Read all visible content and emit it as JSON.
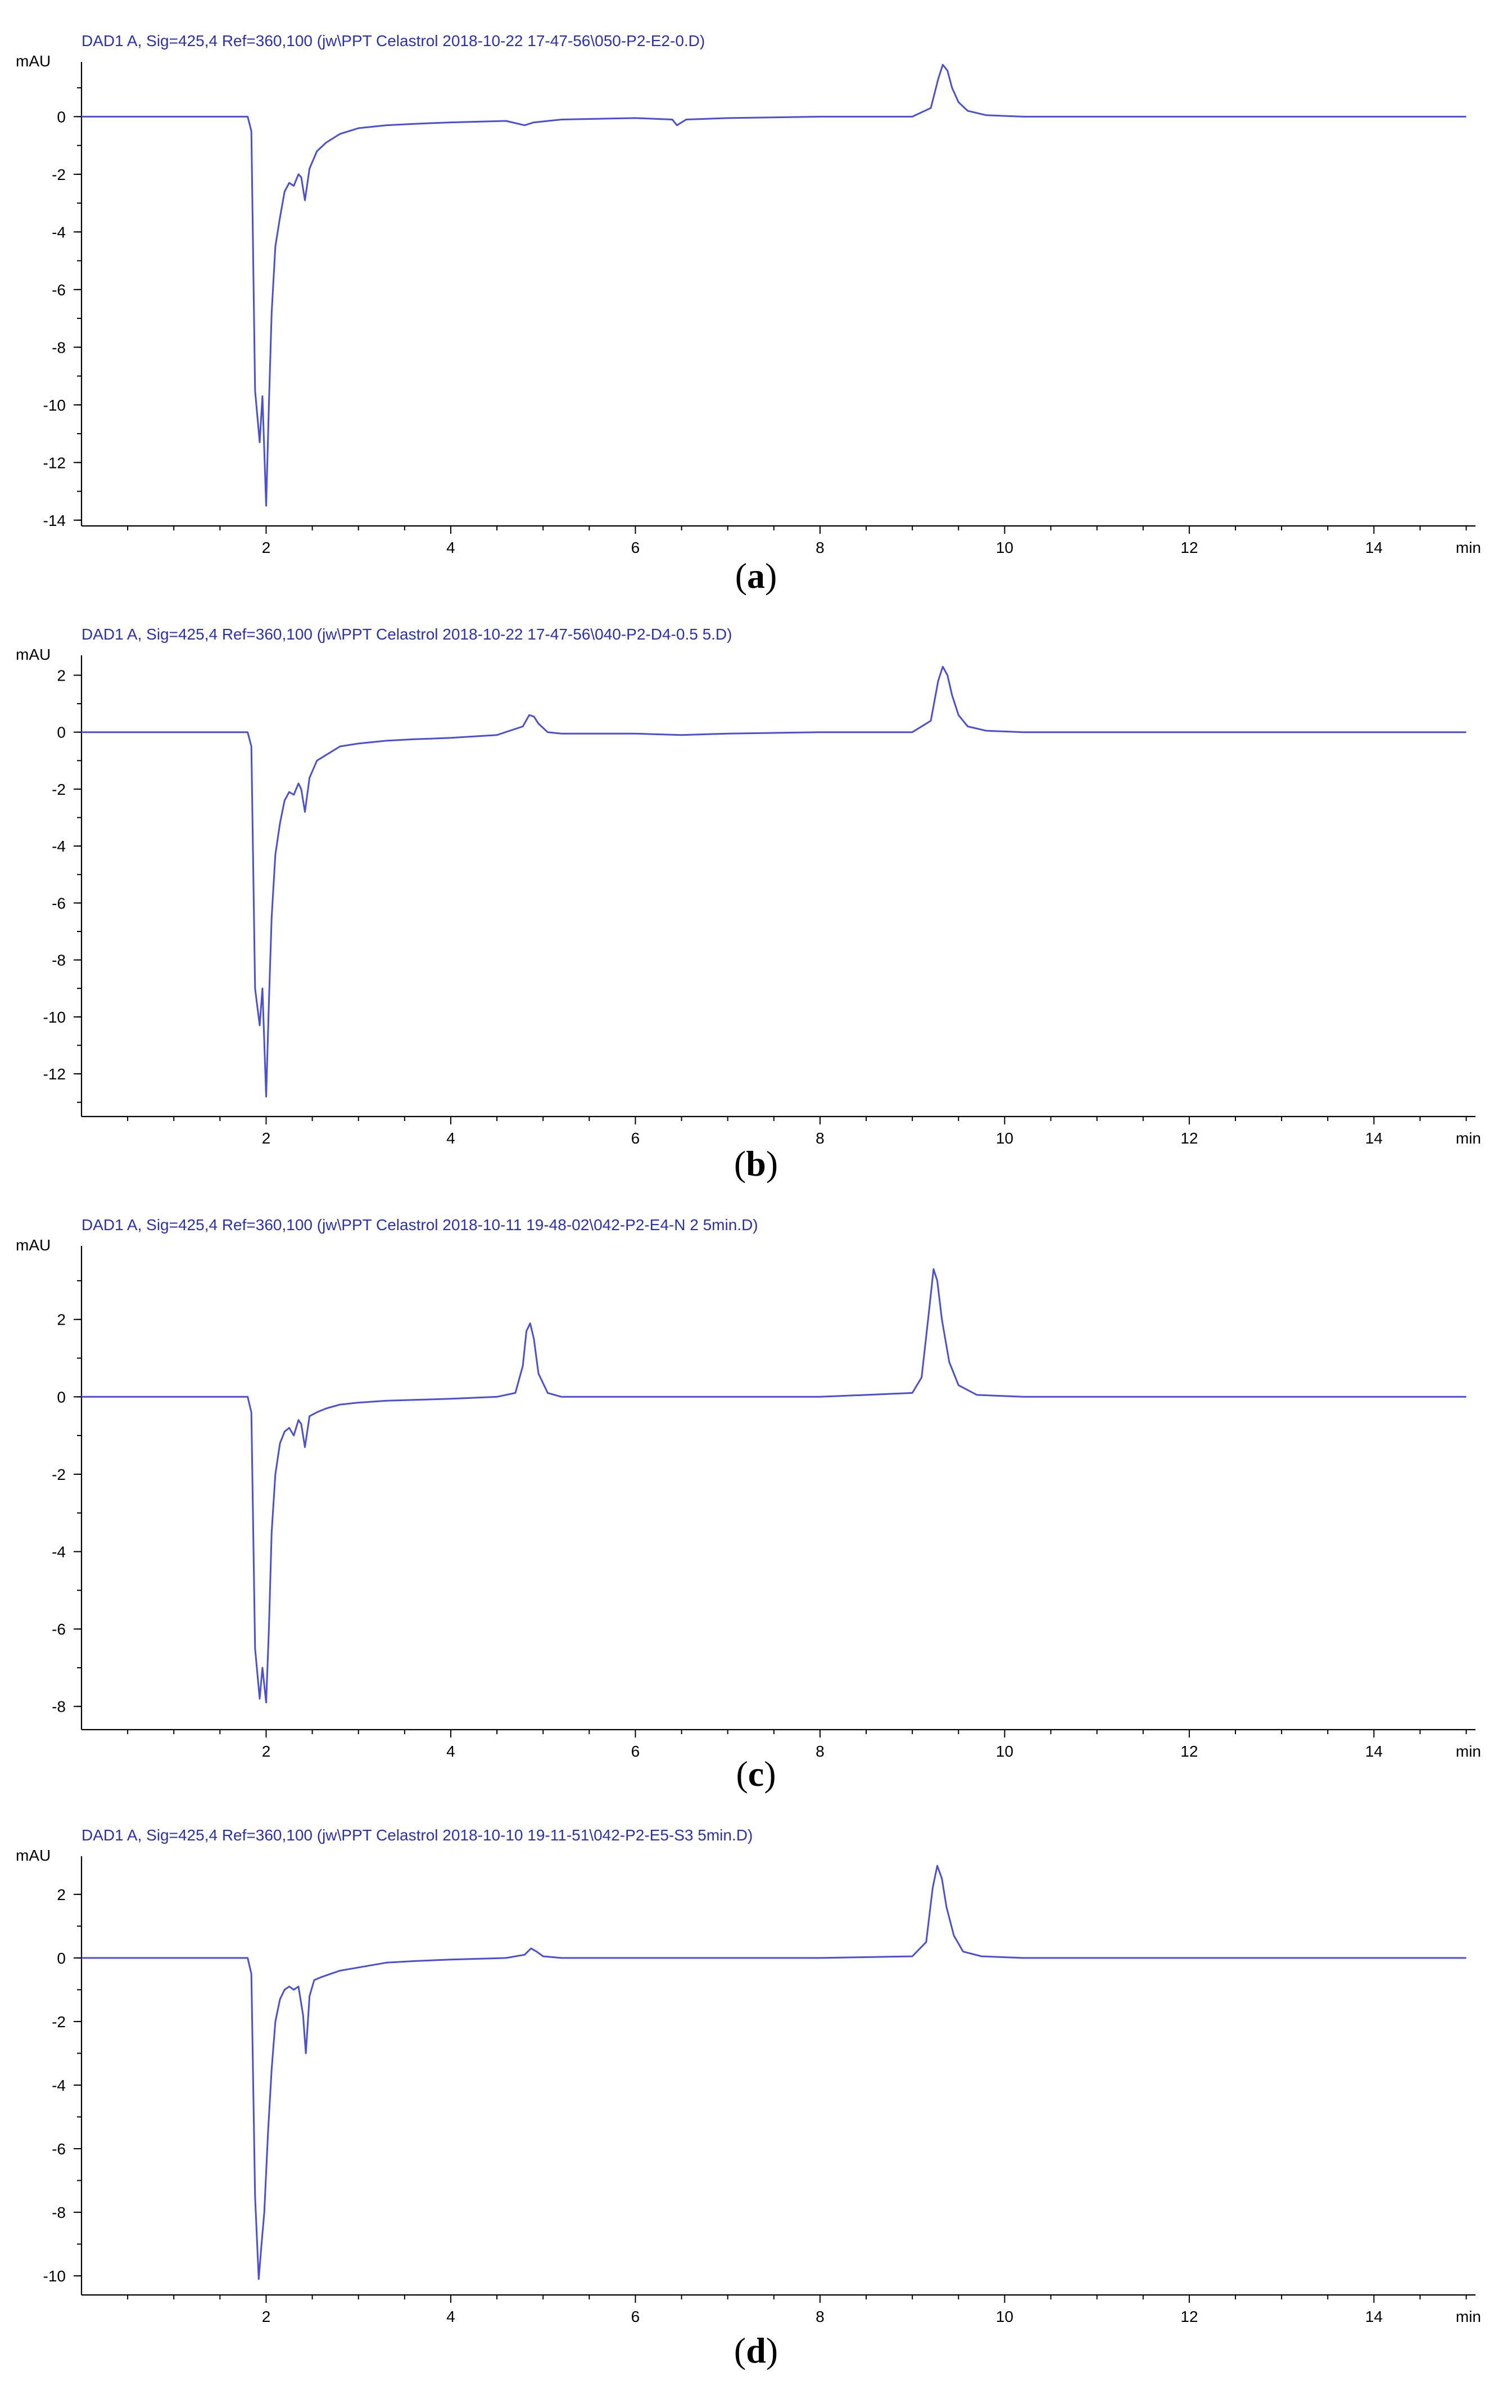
{
  "chart_data": [
    {
      "type": "line",
      "panel": "a",
      "title": "DAD1 A, Sig=425,4 Ref=360,100 (jw\\PPT Celastrol  2018-10-22 17-47-56\\050-P2-E2-0.D)",
      "ylabel": "mAU",
      "xlabel": "min",
      "xlim": [
        0,
        15.1
      ],
      "ylim": [
        -14.2,
        1.9
      ],
      "xticks": [
        2,
        4,
        6,
        8,
        10,
        12,
        14
      ],
      "yticks": [
        -14,
        -12,
        -10,
        -8,
        -6,
        -4,
        -2,
        0
      ],
      "series": [
        {
          "color": "#4a4fd8",
          "x": [
            0,
            1.8,
            1.84,
            1.88,
            1.93,
            1.96,
            2.0,
            2.03,
            2.06,
            2.1,
            2.15,
            2.2,
            2.25,
            2.3,
            2.35,
            2.38,
            2.42,
            2.47,
            2.55,
            2.65,
            2.8,
            3.0,
            3.3,
            3.6,
            4.0,
            4.6,
            4.8,
            4.9,
            5.2,
            6.0,
            6.4,
            6.45,
            6.55,
            7.0,
            8.0,
            9.0,
            9.2,
            9.28,
            9.33,
            9.38,
            9.43,
            9.5,
            9.6,
            9.8,
            10.2,
            12.0,
            15.0
          ],
          "y": [
            0,
            0,
            -0.5,
            -9.5,
            -11.3,
            -9.7,
            -13.5,
            -10.0,
            -6.8,
            -4.5,
            -3.5,
            -2.6,
            -2.3,
            -2.4,
            -2.0,
            -2.1,
            -2.9,
            -1.8,
            -1.2,
            -0.9,
            -0.6,
            -0.4,
            -0.3,
            -0.25,
            -0.2,
            -0.15,
            -0.3,
            -0.2,
            -0.1,
            -0.05,
            -0.1,
            -0.3,
            -0.1,
            -0.05,
            0,
            0,
            0.3,
            1.3,
            1.8,
            1.6,
            1.0,
            0.5,
            0.2,
            0.05,
            0,
            0,
            0
          ]
        }
      ]
    },
    {
      "type": "line",
      "panel": "b",
      "title": "DAD1 A, Sig=425,4 Ref=360,100 (jw\\PPT Celastrol  2018-10-22 17-47-56\\040-P2-D4-0.5 5.D)",
      "ylabel": "mAU",
      "xlabel": "min",
      "xlim": [
        0,
        15.1
      ],
      "ylim": [
        -13.5,
        2.7
      ],
      "xticks": [
        2,
        4,
        6,
        8,
        10,
        12,
        14
      ],
      "yticks": [
        -12,
        -10,
        -8,
        -6,
        -4,
        -2,
        0,
        2
      ],
      "series": [
        {
          "color": "#4a4fd8",
          "x": [
            0,
            1.8,
            1.84,
            1.88,
            1.93,
            1.96,
            2.0,
            2.03,
            2.06,
            2.1,
            2.15,
            2.2,
            2.25,
            2.3,
            2.35,
            2.38,
            2.42,
            2.47,
            2.55,
            2.65,
            2.8,
            3.0,
            3.3,
            3.6,
            4.0,
            4.5,
            4.78,
            4.85,
            4.9,
            4.95,
            5.05,
            5.2,
            6.0,
            6.5,
            7.0,
            8.0,
            9.0,
            9.2,
            9.28,
            9.33,
            9.38,
            9.43,
            9.5,
            9.6,
            9.8,
            10.2,
            12.0,
            15.0
          ],
          "y": [
            0,
            0,
            -0.5,
            -9.0,
            -10.3,
            -9.0,
            -12.8,
            -9.5,
            -6.5,
            -4.3,
            -3.2,
            -2.4,
            -2.1,
            -2.2,
            -1.8,
            -2.0,
            -2.8,
            -1.6,
            -1.0,
            -0.8,
            -0.5,
            -0.4,
            -0.3,
            -0.25,
            -0.2,
            -0.1,
            0.2,
            0.6,
            0.55,
            0.3,
            0.0,
            -0.05,
            -0.05,
            -0.1,
            -0.05,
            0,
            0,
            0.4,
            1.8,
            2.3,
            2.0,
            1.3,
            0.6,
            0.2,
            0.05,
            0,
            0,
            0
          ]
        }
      ]
    },
    {
      "type": "line",
      "panel": "c",
      "title": "DAD1 A, Sig=425,4 Ref=360,100 (jw\\PPT Celastrol  2018-10-11 19-48-02\\042-P2-E4-N 2 5min.D)",
      "ylabel": "mAU",
      "xlabel": "min",
      "xlim": [
        0,
        15.1
      ],
      "ylim": [
        -8.6,
        3.9
      ],
      "xticks": [
        2,
        4,
        6,
        8,
        10,
        12,
        14
      ],
      "yticks": [
        -8,
        -6,
        -4,
        -2,
        0,
        2
      ],
      "series": [
        {
          "color": "#4a4fd8",
          "x": [
            0,
            1.8,
            1.84,
            1.88,
            1.93,
            1.96,
            2.0,
            2.03,
            2.06,
            2.1,
            2.15,
            2.2,
            2.25,
            2.3,
            2.35,
            2.38,
            2.42,
            2.47,
            2.55,
            2.65,
            2.8,
            3.0,
            3.3,
            3.6,
            4.0,
            4.5,
            4.7,
            4.78,
            4.82,
            4.86,
            4.9,
            4.95,
            5.05,
            5.2,
            6.0,
            8.0,
            9.0,
            9.1,
            9.18,
            9.23,
            9.27,
            9.32,
            9.4,
            9.5,
            9.7,
            10.2,
            12.0,
            15.0
          ],
          "y": [
            0,
            0,
            -0.4,
            -6.5,
            -7.8,
            -7.0,
            -7.9,
            -6.0,
            -3.5,
            -2.0,
            -1.2,
            -0.9,
            -0.8,
            -1.0,
            -0.6,
            -0.7,
            -1.3,
            -0.5,
            -0.4,
            -0.3,
            -0.2,
            -0.15,
            -0.1,
            -0.08,
            -0.05,
            0,
            0.1,
            0.8,
            1.7,
            1.9,
            1.5,
            0.6,
            0.1,
            0,
            0,
            0,
            0.1,
            0.5,
            2.2,
            3.3,
            3.0,
            2.0,
            0.9,
            0.3,
            0.05,
            0,
            0,
            0
          ]
        }
      ]
    },
    {
      "type": "line",
      "panel": "d",
      "title": "DAD1 A, Sig=425,4 Ref=360,100 (jw\\PPT Celastrol  2018-10-10 19-11-51\\042-P2-E5-S3 5min.D)",
      "ylabel": "mAU",
      "xlabel": "min",
      "xlim": [
        0,
        15.1
      ],
      "ylim": [
        -10.6,
        3.2
      ],
      "xticks": [
        2,
        4,
        6,
        8,
        10,
        12,
        14
      ],
      "yticks": [
        -10,
        -8,
        -6,
        -4,
        -2,
        0,
        2
      ],
      "series": [
        {
          "color": "#4a4fd8",
          "x": [
            0,
            1.8,
            1.84,
            1.88,
            1.92,
            1.95,
            1.98,
            2.02,
            2.06,
            2.1,
            2.15,
            2.2,
            2.25,
            2.3,
            2.35,
            2.4,
            2.43,
            2.47,
            2.52,
            2.6,
            2.7,
            2.8,
            2.9,
            3.0,
            3.3,
            3.6,
            4.0,
            4.6,
            4.8,
            4.87,
            4.93,
            5.0,
            5.2,
            6.0,
            8.0,
            9.0,
            9.15,
            9.22,
            9.27,
            9.32,
            9.37,
            9.45,
            9.55,
            9.75,
            10.2,
            12.0,
            15.0
          ],
          "y": [
            0,
            0,
            -0.5,
            -7.5,
            -10.1,
            -9.0,
            -8.0,
            -5.5,
            -3.5,
            -2.0,
            -1.3,
            -1.0,
            -0.9,
            -1.0,
            -0.9,
            -1.8,
            -3.0,
            -1.2,
            -0.7,
            -0.6,
            -0.5,
            -0.4,
            -0.35,
            -0.3,
            -0.15,
            -0.1,
            -0.05,
            0,
            0.1,
            0.3,
            0.2,
            0.05,
            0,
            0,
            0,
            0.05,
            0.5,
            2.2,
            2.9,
            2.5,
            1.6,
            0.7,
            0.2,
            0.05,
            0,
            0,
            0
          ]
        }
      ]
    }
  ],
  "panel_letters": [
    "a",
    "b",
    "c",
    "d"
  ]
}
